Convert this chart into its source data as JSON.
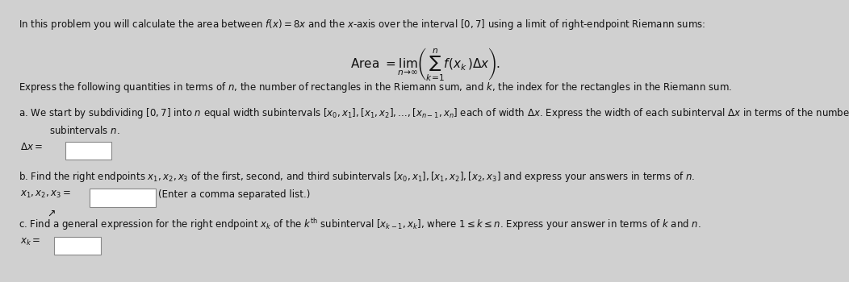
{
  "background_color": "#d0d0d0",
  "content_bg": "#e0e0e0",
  "text_color": "#111111",
  "box_color": "#ffffff",
  "box_edge_color": "#888888",
  "fs_main": 8.5,
  "fs_formula": 11
}
